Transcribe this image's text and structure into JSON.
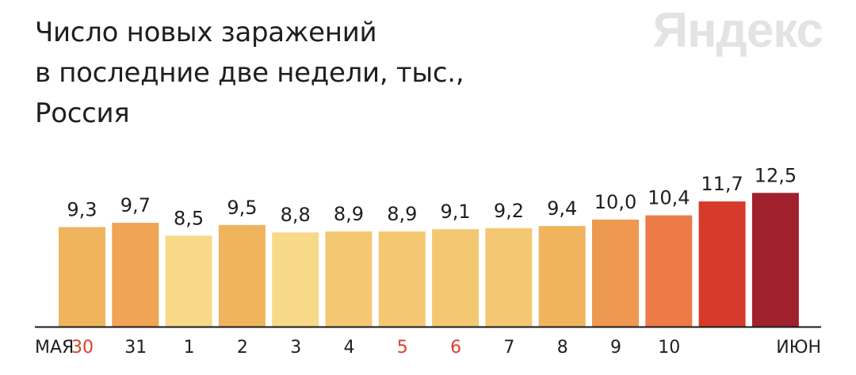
{
  "title_lines": [
    "Число новых заражений",
    "в последние две недели, тыс.,",
    "Россия"
  ],
  "brand": "Яндекс",
  "colors": {
    "text": "#1f1f1f",
    "weekend_tick": "#d9412b",
    "baseline": "#1a1a1a",
    "logo": "#e3e3e3"
  },
  "chart_data": {
    "type": "bar",
    "title": "Число новых заражений в последние две недели, тыс., Россия",
    "xlabel": "",
    "ylabel": "",
    "ylim": [
      0,
      12.5
    ],
    "grid": false,
    "legend": "none",
    "categories": [
      "30",
      "31",
      "1",
      "2",
      "3",
      "4",
      "5",
      "6",
      "7",
      "8",
      "9",
      "10",
      "",
      ""
    ],
    "values": [
      9.3,
      9.7,
      8.5,
      9.5,
      8.8,
      8.9,
      8.9,
      9.1,
      9.2,
      9.4,
      10.0,
      10.4,
      11.7,
      12.5
    ],
    "value_labels": [
      "9,3",
      "9,7",
      "8,5",
      "9,5",
      "8,8",
      "8,9",
      "8,9",
      "9,1",
      "9,2",
      "9,4",
      "10,0",
      "10,4",
      "11,7",
      "12,5"
    ],
    "bar_colors": [
      "#f0b45e",
      "#f0a455",
      "#f7d987",
      "#f0b45e",
      "#f7d987",
      "#f4c872",
      "#f4c872",
      "#f4c872",
      "#f4c872",
      "#f0b45e",
      "#ee9950",
      "#ec7b48",
      "#d63a2b",
      "#a0202e"
    ],
    "tick_labels": [
      {
        "text": "МАЯ",
        "weekend": false
      },
      {
        "text": "30",
        "weekend": true
      },
      {
        "text": "31",
        "weekend": false
      },
      {
        "text": "1",
        "weekend": false
      },
      {
        "text": "2",
        "weekend": false
      },
      {
        "text": "3",
        "weekend": false
      },
      {
        "text": "4",
        "weekend": false
      },
      {
        "text": "5",
        "weekend": true
      },
      {
        "text": "6",
        "weekend": true
      },
      {
        "text": "7",
        "weekend": false
      },
      {
        "text": "8",
        "weekend": false
      },
      {
        "text": "9",
        "weekend": false
      },
      {
        "text": "10",
        "weekend": false
      },
      {
        "text": "ИЮН",
        "weekend": false
      }
    ]
  }
}
